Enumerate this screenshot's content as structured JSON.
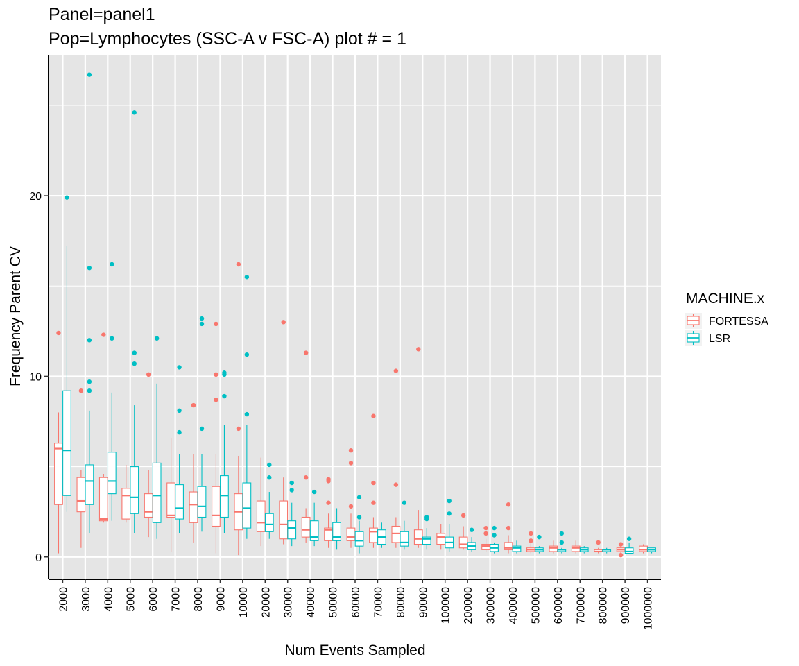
{
  "chart_data": {
    "type": "box",
    "title": "Panel=panel1",
    "subtitle": "Pop=Lymphocytes (SSC-A v FSC-A) plot # = 1",
    "xlabel": "Num Events Sampled",
    "ylabel": "Frequency Parent CV",
    "ylim": [
      -1.2,
      27.8
    ],
    "y_ticks": [
      0,
      10,
      20
    ],
    "grid": true,
    "legend": {
      "title": "MACHINE.x",
      "position": "right"
    },
    "categories": [
      "2000",
      "3000",
      "4000",
      "5000",
      "6000",
      "7000",
      "8000",
      "9000",
      "10000",
      "20000",
      "30000",
      "40000",
      "50000",
      "60000",
      "70000",
      "80000",
      "90000",
      "100000",
      "200000",
      "300000",
      "400000",
      "500000",
      "600000",
      "700000",
      "800000",
      "900000",
      "1000000"
    ],
    "series": [
      {
        "name": "FORTESSA",
        "color": "#F8766D",
        "boxes": [
          {
            "low": 0.2,
            "q1": 2.9,
            "median": 6.0,
            "q3": 6.3,
            "high": 8.0,
            "outliers": [
              12.4
            ]
          },
          {
            "low": 0.5,
            "q1": 2.5,
            "median": 3.1,
            "q3": 4.4,
            "high": 4.8,
            "outliers": [
              9.2
            ]
          },
          {
            "low": 1.9,
            "q1": 2.0,
            "median": 2.1,
            "q3": 4.4,
            "high": 4.6,
            "outliers": [
              12.3
            ]
          },
          {
            "low": 1.9,
            "q1": 2.1,
            "median": 3.4,
            "q3": 3.8,
            "high": 5.1,
            "outliers": []
          },
          {
            "low": 1.1,
            "q1": 2.2,
            "median": 2.5,
            "q3": 3.5,
            "high": 4.8,
            "outliers": [
              10.1
            ]
          },
          {
            "low": 0.3,
            "q1": 2.2,
            "median": 2.3,
            "q3": 4.1,
            "high": 6.6,
            "outliers": []
          },
          {
            "low": 0.8,
            "q1": 1.9,
            "median": 2.9,
            "q3": 3.6,
            "high": 5.7,
            "outliers": [
              8.4
            ]
          },
          {
            "low": 0.2,
            "q1": 1.7,
            "median": 2.3,
            "q3": 3.9,
            "high": 5.7,
            "outliers": [
              8.7,
              10.1,
              12.9
            ]
          },
          {
            "low": 0.1,
            "q1": 1.5,
            "median": 2.5,
            "q3": 3.5,
            "high": 5.6,
            "outliers": [
              7.1,
              16.2
            ]
          },
          {
            "low": 0.6,
            "q1": 1.4,
            "median": 1.9,
            "q3": 3.1,
            "high": 5.5,
            "outliers": []
          },
          {
            "low": 0.7,
            "q1": 1.0,
            "median": 1.8,
            "q3": 3.1,
            "high": 4.4,
            "outliers": [
              13.0
            ]
          },
          {
            "low": 0.8,
            "q1": 1.1,
            "median": 1.5,
            "q3": 2.2,
            "high": 2.7,
            "outliers": [
              4.4,
              11.3
            ]
          },
          {
            "low": 0.5,
            "q1": 0.9,
            "median": 1.5,
            "q3": 1.6,
            "high": 2.4,
            "outliers": [
              3.0,
              4.2,
              4.3
            ]
          },
          {
            "low": 0.5,
            "q1": 0.9,
            "median": 1.1,
            "q3": 1.6,
            "high": 2.4,
            "outliers": [
              2.8,
              5.2,
              5.9
            ]
          },
          {
            "low": 0.5,
            "q1": 0.8,
            "median": 1.4,
            "q3": 1.6,
            "high": 2.2,
            "outliers": [
              3.0,
              4.1,
              7.8
            ]
          },
          {
            "low": 0.5,
            "q1": 0.8,
            "median": 1.3,
            "q3": 1.7,
            "high": 2.2,
            "outliers": [
              4.0,
              10.3
            ]
          },
          {
            "low": 0.5,
            "q1": 0.7,
            "median": 1.0,
            "q3": 1.5,
            "high": 2.6,
            "outliers": [
              11.5
            ]
          },
          {
            "low": 0.4,
            "q1": 0.7,
            "median": 1.1,
            "q3": 1.3,
            "high": 1.8,
            "outliers": []
          },
          {
            "low": 0.4,
            "q1": 0.5,
            "median": 0.7,
            "q3": 1.1,
            "high": 1.7,
            "outliers": [
              2.3
            ]
          },
          {
            "low": 0.3,
            "q1": 0.4,
            "median": 0.6,
            "q3": 0.7,
            "high": 1.0,
            "outliers": [
              1.3,
              1.6
            ]
          },
          {
            "low": 0.2,
            "q1": 0.4,
            "median": 0.5,
            "q3": 0.8,
            "high": 1.2,
            "outliers": [
              1.6,
              2.9
            ]
          },
          {
            "low": 0.2,
            "q1": 0.3,
            "median": 0.4,
            "q3": 0.5,
            "high": 0.8,
            "outliers": [
              0.9,
              1.3
            ]
          },
          {
            "low": 0.2,
            "q1": 0.3,
            "median": 0.5,
            "q3": 0.6,
            "high": 0.9,
            "outliers": []
          },
          {
            "low": 0.2,
            "q1": 0.3,
            "median": 0.5,
            "q3": 0.6,
            "high": 0.9,
            "outliers": []
          },
          {
            "low": 0.2,
            "q1": 0.3,
            "median": 0.3,
            "q3": 0.4,
            "high": 0.5,
            "outliers": [
              0.8
            ]
          },
          {
            "low": 0.2,
            "q1": 0.3,
            "median": 0.4,
            "q3": 0.5,
            "high": 0.6,
            "outliers": [
              0.1,
              0.7
            ]
          },
          {
            "low": 0.2,
            "q1": 0.3,
            "median": 0.4,
            "q3": 0.6,
            "high": 0.7,
            "outliers": []
          }
        ]
      },
      {
        "name": "LSR",
        "color": "#00BFC4",
        "boxes": [
          {
            "low": 2.5,
            "q1": 3.4,
            "median": 5.9,
            "q3": 9.2,
            "high": 17.2,
            "outliers": [
              19.9
            ]
          },
          {
            "low": 1.3,
            "q1": 2.9,
            "median": 4.2,
            "q3": 5.1,
            "high": 8.1,
            "outliers": [
              9.2,
              9.7,
              12.0,
              16.0,
              26.7
            ]
          },
          {
            "low": 2.0,
            "q1": 3.5,
            "median": 4.2,
            "q3": 5.8,
            "high": 9.1,
            "outliers": [
              12.1,
              16.2
            ]
          },
          {
            "low": 1.3,
            "q1": 2.4,
            "median": 3.3,
            "q3": 5.0,
            "high": 8.4,
            "outliers": [
              10.7,
              11.3,
              24.6
            ]
          },
          {
            "low": 1.0,
            "q1": 1.9,
            "median": 3.4,
            "q3": 5.2,
            "high": 9.6,
            "outliers": [
              12.1
            ]
          },
          {
            "low": 1.3,
            "q1": 2.1,
            "median": 2.7,
            "q3": 4.0,
            "high": 5.7,
            "outliers": [
              6.9,
              8.1,
              10.5
            ]
          },
          {
            "low": 1.4,
            "q1": 2.2,
            "median": 2.8,
            "q3": 3.9,
            "high": 5.7,
            "outliers": [
              7.1,
              12.9,
              13.2
            ]
          },
          {
            "low": 1.3,
            "q1": 2.2,
            "median": 3.4,
            "q3": 4.5,
            "high": 7.3,
            "outliers": [
              8.9,
              10.1,
              10.2
            ]
          },
          {
            "low": 1.0,
            "q1": 1.6,
            "median": 2.7,
            "q3": 4.1,
            "high": 7.3,
            "outliers": [
              7.9,
              11.2,
              15.5
            ]
          },
          {
            "low": 1.0,
            "q1": 1.4,
            "median": 1.8,
            "q3": 2.4,
            "high": 3.6,
            "outliers": [
              4.4,
              5.1
            ]
          },
          {
            "low": 0.6,
            "q1": 1.0,
            "median": 1.6,
            "q3": 2.0,
            "high": 3.0,
            "outliers": [
              3.7,
              4.1
            ]
          },
          {
            "low": 0.6,
            "q1": 0.9,
            "median": 1.1,
            "q3": 2.0,
            "high": 3.0,
            "outliers": [
              3.6
            ]
          },
          {
            "low": 0.4,
            "q1": 0.9,
            "median": 1.1,
            "q3": 1.9,
            "high": 2.7,
            "outliers": []
          },
          {
            "low": 0.2,
            "q1": 0.6,
            "median": 0.9,
            "q3": 1.4,
            "high": 2.0,
            "outliers": [
              2.2,
              3.3
            ]
          },
          {
            "low": 0.5,
            "q1": 0.7,
            "median": 1.1,
            "q3": 1.5,
            "high": 1.9,
            "outliers": []
          },
          {
            "low": 0.4,
            "q1": 0.6,
            "median": 0.8,
            "q3": 1.4,
            "high": 2.0,
            "outliers": [
              3.0
            ]
          },
          {
            "low": 0.4,
            "q1": 0.7,
            "median": 1.0,
            "q3": 1.1,
            "high": 1.6,
            "outliers": [
              2.1,
              2.2
            ]
          },
          {
            "low": 0.3,
            "q1": 0.5,
            "median": 0.8,
            "q3": 1.1,
            "high": 1.8,
            "outliers": [
              2.4,
              3.1
            ]
          },
          {
            "low": 0.3,
            "q1": 0.4,
            "median": 0.6,
            "q3": 0.8,
            "high": 1.1,
            "outliers": [
              1.5
            ]
          },
          {
            "low": 0.2,
            "q1": 0.3,
            "median": 0.5,
            "q3": 0.7,
            "high": 0.8,
            "outliers": [
              1.2,
              1.6
            ]
          },
          {
            "low": 0.2,
            "q1": 0.3,
            "median": 0.5,
            "q3": 0.6,
            "high": 0.9,
            "outliers": []
          },
          {
            "low": 0.2,
            "q1": 0.3,
            "median": 0.4,
            "q3": 0.5,
            "high": 0.6,
            "outliers": [
              1.1
            ]
          },
          {
            "low": 0.2,
            "q1": 0.3,
            "median": 0.4,
            "q3": 0.4,
            "high": 0.5,
            "outliers": [
              0.8,
              1.3
            ]
          },
          {
            "low": 0.2,
            "q1": 0.3,
            "median": 0.4,
            "q3": 0.5,
            "high": 0.6,
            "outliers": []
          },
          {
            "low": 0.2,
            "q1": 0.3,
            "median": 0.4,
            "q3": 0.4,
            "high": 0.5,
            "outliers": []
          },
          {
            "low": 0.2,
            "q1": 0.2,
            "median": 0.3,
            "q3": 0.5,
            "high": 0.8,
            "outliers": [
              1.0
            ]
          },
          {
            "low": 0.2,
            "q1": 0.3,
            "median": 0.4,
            "q3": 0.5,
            "high": 0.5,
            "outliers": []
          }
        ]
      }
    ]
  }
}
